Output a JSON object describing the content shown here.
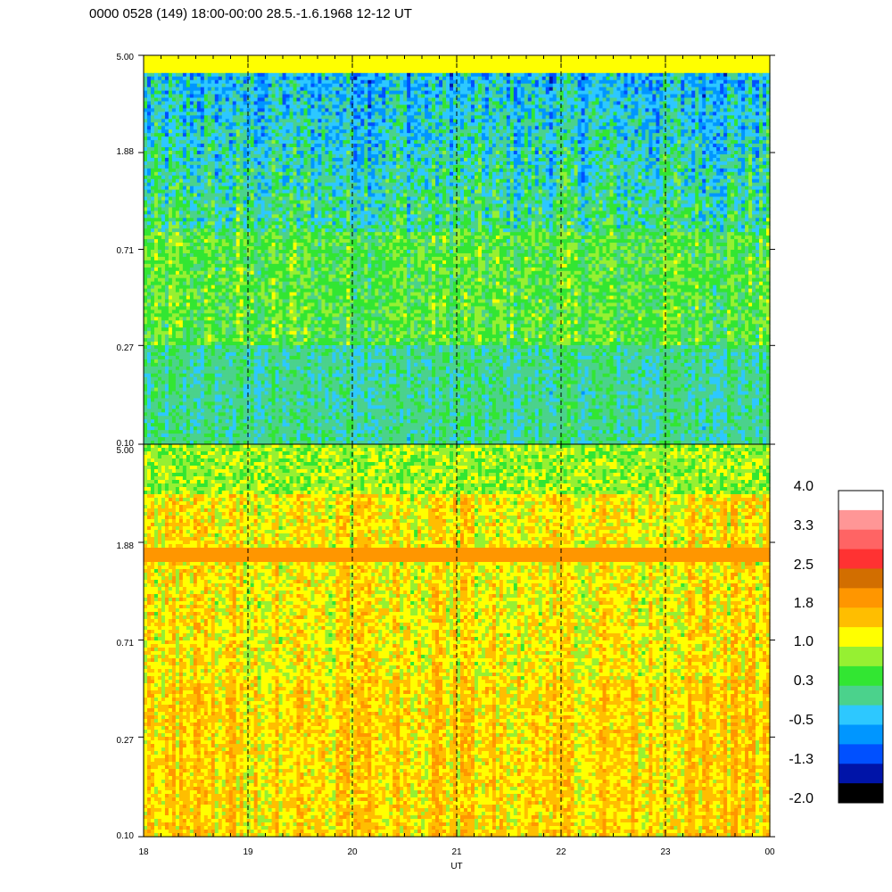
{
  "chart_data": [
    {
      "type": "heatmap",
      "panel": "top",
      "x": [
        "18",
        "19",
        "20",
        "21",
        "22",
        "23",
        "00"
      ],
      "y_ticks": [
        "5.00",
        "1.88",
        "0.71",
        "0.27",
        "0.10"
      ],
      "y_scale": "log",
      "ylim": [
        0.1,
        5.0
      ],
      "vertical_guides_at": [
        "19",
        "20",
        "21",
        "22",
        "23"
      ],
      "dominant_level": 0.3
    },
    {
      "type": "heatmap",
      "panel": "bottom",
      "x": [
        "18",
        "19",
        "20",
        "21",
        "22",
        "23",
        "00"
      ],
      "y_ticks": [
        "5.00",
        "1.88",
        "0.71",
        "0.27",
        "0.10"
      ],
      "y_scale": "log",
      "ylim": [
        0.1,
        5.0
      ],
      "vertical_guides_at": [
        "19",
        "20",
        "21",
        "22",
        "23"
      ],
      "dominant_level": 1.8
    }
  ],
  "figure": {
    "title": "0000 0528 (149) 18:00-00:00 28.5.-1.6.1968  12-12 UT",
    "xlabel": "UT",
    "x_ticks": [
      "18",
      "19",
      "20",
      "21",
      "22",
      "23",
      "00"
    ]
  },
  "colorbar": {
    "labels": [
      "4.0",
      "3.3",
      "2.5",
      "1.8",
      "1.0",
      "0.3",
      "-0.5",
      "-1.3",
      "-2.0"
    ],
    "colors": [
      "#000000",
      "#0014a8",
      "#0050ff",
      "#0096ff",
      "#2dc8ff",
      "#4bd28c",
      "#32e632",
      "#96f032",
      "#ffff00",
      "#ffbe00",
      "#ff9600",
      "#d26e00",
      "#ff3232",
      "#ff6464",
      "#ff9696",
      "#ffffff"
    ]
  }
}
